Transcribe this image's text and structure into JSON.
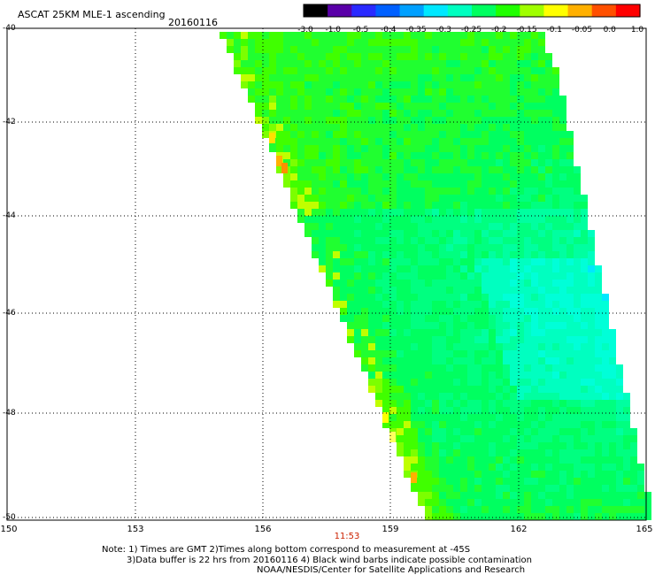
{
  "header": {
    "title": "ASCAT 25KM MLE-1 ascending",
    "date": "20160116"
  },
  "colorbar": {
    "labels": [
      "-3.0",
      "-1.0",
      "-0.5",
      "-0.4",
      "-0.35",
      "-0.3",
      "-0.25",
      "-0.2",
      "-0.15",
      "-0.1",
      "-0.05",
      "0.0",
      "1.0"
    ],
    "colors": [
      "#000000",
      "#5a00a8",
      "#2a2aff",
      "#0060ff",
      "#00a0ff",
      "#00e8ff",
      "#00ffc0",
      "#00ff60",
      "#20ff00",
      "#a0ff00",
      "#ffff00",
      "#ffb000",
      "#ff5000",
      "#ff0000"
    ]
  },
  "map": {
    "lat_labels": [
      "-40",
      "-42",
      "-44",
      "-46",
      "-48",
      "-50"
    ],
    "lon_labels": [
      "150",
      "153",
      "156",
      "159",
      "162",
      "165"
    ],
    "pass_time": "11:53"
  },
  "footer": {
    "line1": "Note: 1) Times are GMT 2)Times along bottom correspond to measurement at -45S",
    "line2": "3)Data buffer is 22 hrs from 20160116 4) Black wind barbs indicate possible contamination",
    "line3": "NOAA/NESDIS/Center for Satellite Applications and Research"
  }
}
